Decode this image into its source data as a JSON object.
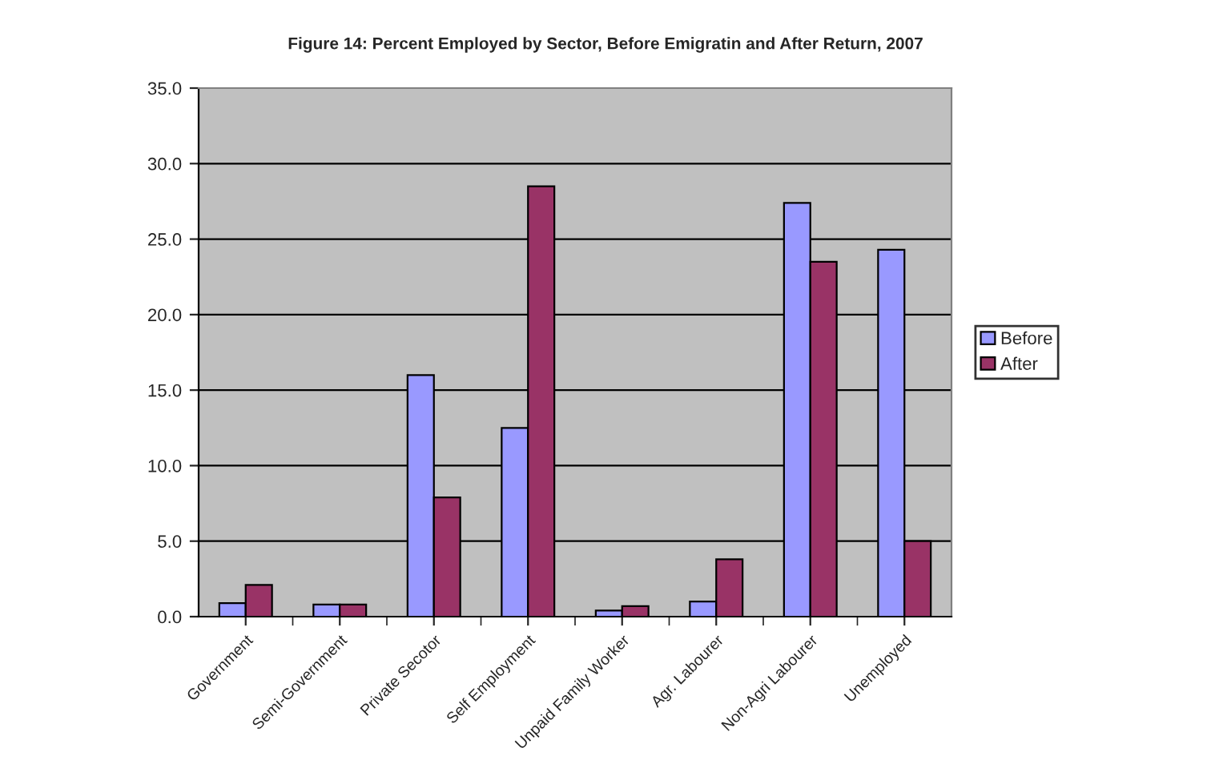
{
  "chart_data": {
    "type": "bar",
    "title": "Figure 14: Percent Employed by Sector, Before Emigratin and After Return, 2007",
    "categories": [
      "Government",
      "Semi-Government",
      "Private Secotor",
      "Self Employment",
      "Unpaid Family Worker",
      "Agr. Labourer",
      "Non-Agri Labourer",
      "Unemployed"
    ],
    "series": [
      {
        "name": "Before",
        "color": "#9999ff",
        "values": [
          0.9,
          0.8,
          16.0,
          12.5,
          0.4,
          1.0,
          27.4,
          24.3
        ]
      },
      {
        "name": "After",
        "color": "#993366",
        "values": [
          2.1,
          0.8,
          7.9,
          28.5,
          0.7,
          3.8,
          23.5,
          5.0
        ]
      }
    ],
    "ylim": [
      0,
      35
    ],
    "yticks": [
      {
        "value": 0,
        "label": "0.0"
      },
      {
        "value": 5,
        "label": "5.0"
      },
      {
        "value": 10,
        "label": "10.0"
      },
      {
        "value": 15,
        "label": "15.0"
      },
      {
        "value": 20,
        "label": "20.0"
      },
      {
        "value": 25,
        "label": "25.0"
      },
      {
        "value": 30,
        "label": "30.0"
      },
      {
        "value": 35,
        "label": "35.0"
      }
    ],
    "grid": "y",
    "legend": "right"
  }
}
